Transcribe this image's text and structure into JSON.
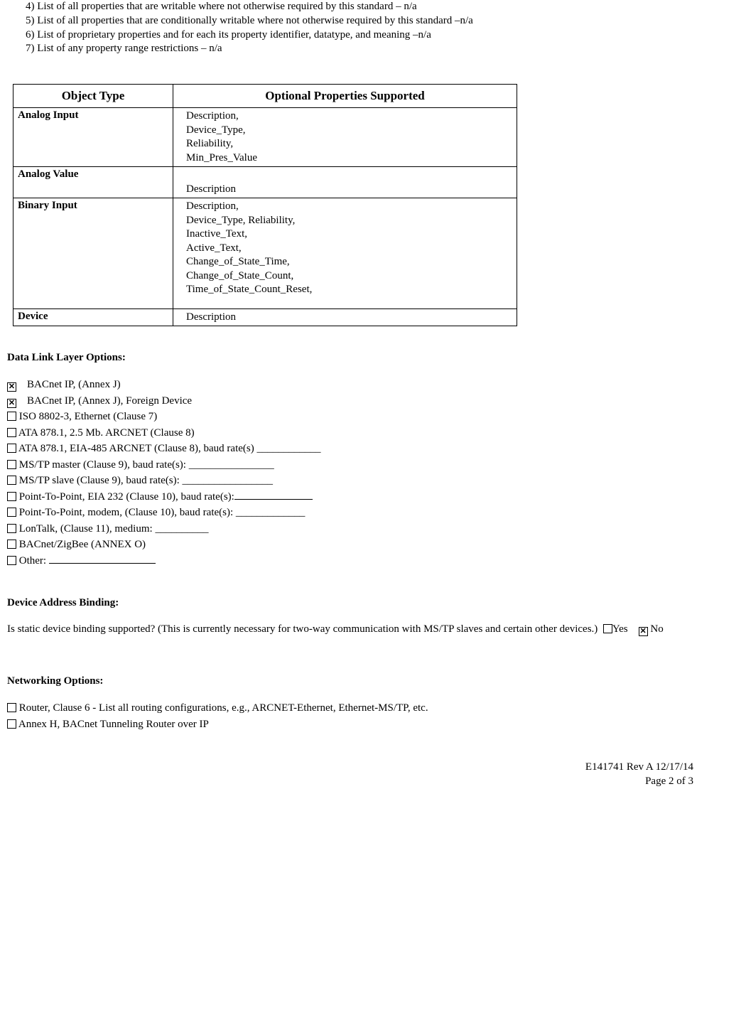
{
  "list_items": [
    "4) List of all properties that are writable where not otherwise required by this standard – n/a",
    "5) List of all properties that are conditionally writable where not otherwise required by this standard –n/a",
    "6) List of proprietary properties and for each its property identifier, datatype, and meaning –n/a",
    "7) List of any property range restrictions – n/a"
  ],
  "table": {
    "headers": [
      "Object Type",
      "Optional Properties Supported"
    ],
    "rows": [
      {
        "type": "Analog Input",
        "props": "Description,<br>Device_Type,<br>Reliability,<br>Min_Pres_Value"
      },
      {
        "type": "Analog Value",
        "props": "<br>Description"
      },
      {
        "type": "Binary Input",
        "props": "Description,<br>Device_Type, Reliability,<br>Inactive_Text,<br>Active_Text,<br>Change_of_State_Time,<br>Change_of_State_Count,<br>Time_of_State_Count_Reset,"
      },
      {
        "type": "Device",
        "props": "Description"
      }
    ]
  },
  "data_link": {
    "heading": "Data Link Layer Options:",
    "items": [
      {
        "checked": true,
        "label": "BACnet IP, (Annex J)",
        "indent": true
      },
      {
        "checked": true,
        "label": "BACnet IP, (Annex J), Foreign Device",
        "indent": true
      },
      {
        "checked": false,
        "label": "ISO 8802-3, Ethernet (Clause 7)"
      },
      {
        "checked": false,
        "label": "ATA 878.1, 2.5 Mb. ARCNET (Clause 8)"
      },
      {
        "checked": false,
        "label": "ATA 878.1, EIA-485 ARCNET (Clause 8), baud rate(s) ____________"
      },
      {
        "checked": false,
        "label": "MS/TP master (Clause 9), baud rate(s): ________________"
      },
      {
        "checked": false,
        "label": "MS/TP slave (Clause 9), baud rate(s): _________________"
      },
      {
        "checked": false,
        "label": "Point-To-Point, EIA 232 (Clause 10), baud rate(s):",
        "blank_after": 110
      },
      {
        "checked": false,
        "label": "Point-To-Point, modem, (Clause 10), baud rate(s): _____________"
      },
      {
        "checked": false,
        "label": "LonTalk, (Clause 11), medium: __________"
      },
      {
        "checked": false,
        "label": "BACnet/ZigBee (ANNEX O)"
      },
      {
        "checked": false,
        "label": "Other: ",
        "blank_after": 150
      }
    ]
  },
  "binding": {
    "heading": "Device Address Binding:",
    "text": "Is static device binding supported? (This is currently necessary for two-way communication with MS/TP slaves and certain other devices.)",
    "yes_label": "Yes",
    "no_label": "No",
    "yes_checked": false,
    "no_checked": true
  },
  "networking": {
    "heading": "Networking Options:",
    "items": [
      {
        "checked": false,
        "label": "Router, Clause 6 - List all routing configurations, e.g., ARCNET-Ethernet, Ethernet-MS/TP, etc."
      },
      {
        "checked": false,
        "label": "Annex H, BACnet Tunneling Router over IP"
      }
    ]
  },
  "footer": {
    "rev": "E141741 Rev A 12/17/14",
    "page": "Page 2 of 3"
  }
}
